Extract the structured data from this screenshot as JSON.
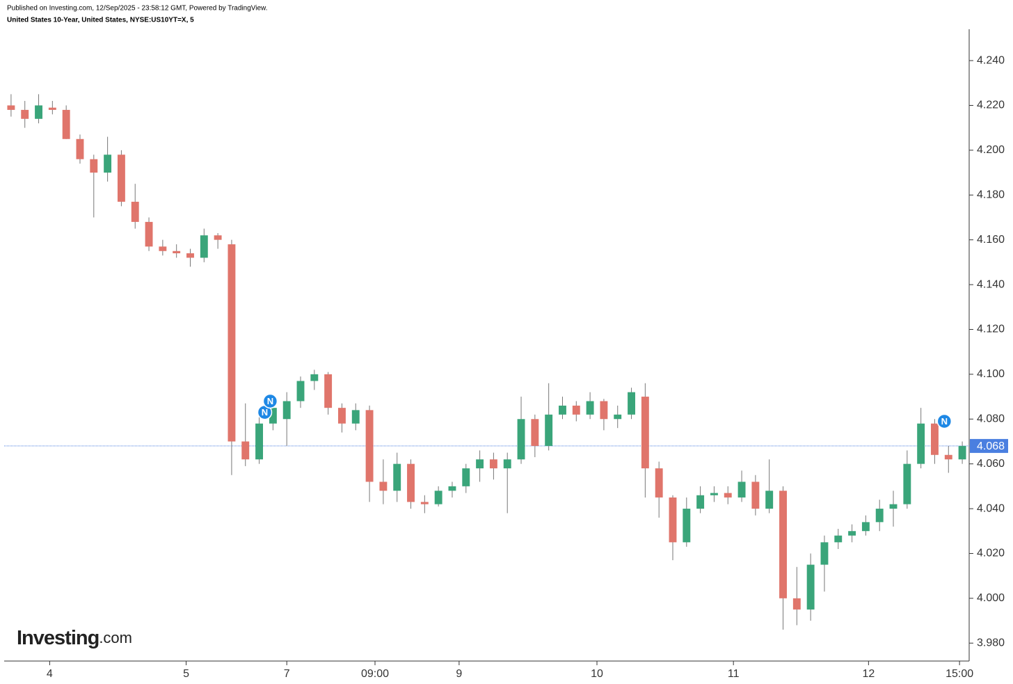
{
  "header": {
    "published": "Published on Investing.com, 12/Sep/2025 - 23:58:12 GMT, Powered by TradingView.",
    "symbol": "United States 10-Year, United States, NYSE:US10YT=X, 5"
  },
  "logo": {
    "brand": "Investing",
    "suffix": ".com"
  },
  "chart_data": {
    "type": "candlestick",
    "up_color": "#3aa57a",
    "down_color": "#e0756b",
    "last_color": "#4a7fe0",
    "xlim": [
      0,
      70
    ],
    "ylim": [
      3.972,
      4.254
    ],
    "xticks": [
      {
        "value": 3.3,
        "label": "4"
      },
      {
        "value": 13.2,
        "label": "5"
      },
      {
        "value": 20.5,
        "label": "7"
      },
      {
        "value": 26.9,
        "label": "09:00"
      },
      {
        "value": 33,
        "label": "9"
      },
      {
        "value": 43,
        "label": "10"
      },
      {
        "value": 52.9,
        "label": "11"
      },
      {
        "value": 62.7,
        "label": "12"
      },
      {
        "value": 69.3,
        "label": "15:00"
      }
    ],
    "yticks": [
      {
        "value": 3.98,
        "label": "3.980"
      },
      {
        "value": 4.0,
        "label": "4.000"
      },
      {
        "value": 4.02,
        "label": "4.020"
      },
      {
        "value": 4.04,
        "label": "4.040"
      },
      {
        "value": 4.06,
        "label": "4.060"
      },
      {
        "value": 4.08,
        "label": "4.080"
      },
      {
        "value": 4.1,
        "label": "4.100"
      },
      {
        "value": 4.12,
        "label": "4.120"
      },
      {
        "value": 4.14,
        "label": "4.140"
      },
      {
        "value": 4.16,
        "label": "4.160"
      },
      {
        "value": 4.18,
        "label": "4.180"
      },
      {
        "value": 4.2,
        "label": "4.200"
      },
      {
        "value": 4.22,
        "label": "4.220"
      },
      {
        "value": 4.24,
        "label": "4.240"
      }
    ],
    "last_value": 4.068,
    "x": [
      0.5,
      1.5,
      2.5,
      3.5,
      4.5,
      5.5,
      6.5,
      7.5,
      8.5,
      9.5,
      10.5,
      11.5,
      12.5,
      13.5,
      14.5,
      15.5,
      16.5,
      17.5,
      18.5,
      19.5,
      20.5,
      21.5,
      22.5,
      23.5,
      24.5,
      25.5,
      26.5,
      27.5,
      28.5,
      29.5,
      30.5,
      31.5,
      32.5,
      33.5,
      34.5,
      35.5,
      36.5,
      37.5,
      38.5,
      39.5,
      40.5,
      41.5,
      42.5,
      43.5,
      44.5,
      45.5,
      46.5,
      47.5,
      48.5,
      49.5,
      50.5,
      51.5,
      52.5,
      53.5,
      54.5,
      55.5,
      56.5,
      57.5,
      58.5,
      59.5,
      60.5,
      61.5,
      62.5,
      63.5,
      64.5,
      65.5,
      66.5,
      67.5,
      68.5,
      69.5
    ],
    "open": [
      4.22,
      4.218,
      4.214,
      4.219,
      4.218,
      4.205,
      4.196,
      4.19,
      4.198,
      4.177,
      4.168,
      4.157,
      4.155,
      4.154,
      4.152,
      4.162,
      4.158,
      4.07,
      4.062,
      4.078,
      4.08,
      4.088,
      4.097,
      4.1,
      4.085,
      4.078,
      4.084,
      4.052,
      4.048,
      4.06,
      4.043,
      4.042,
      4.048,
      4.05,
      4.058,
      4.062,
      4.058,
      4.062,
      4.08,
      4.068,
      4.082,
      4.086,
      4.082,
      4.088,
      4.08,
      4.082,
      4.09,
      4.058,
      4.045,
      4.025,
      4.04,
      4.046,
      4.047,
      4.045,
      4.052,
      4.04,
      4.048,
      4.0,
      3.995,
      4.015,
      4.025,
      4.028,
      4.03,
      4.034,
      4.04,
      4.042,
      4.06,
      4.078,
      4.064,
      4.062
    ],
    "high": [
      4.225,
      4.222,
      4.225,
      4.222,
      4.22,
      4.207,
      4.198,
      4.206,
      4.2,
      4.185,
      4.17,
      4.16,
      4.158,
      4.156,
      4.165,
      4.163,
      4.16,
      4.087,
      4.085,
      4.09,
      4.092,
      4.099,
      4.102,
      4.101,
      4.087,
      4.087,
      4.086,
      4.062,
      4.065,
      4.062,
      4.046,
      4.05,
      4.052,
      4.06,
      4.066,
      4.065,
      4.065,
      4.09,
      4.082,
      4.096,
      4.09,
      4.088,
      4.092,
      4.089,
      4.086,
      4.094,
      4.096,
      4.061,
      4.046,
      4.045,
      4.05,
      4.05,
      4.05,
      4.057,
      4.055,
      4.062,
      4.05,
      4.014,
      4.02,
      4.028,
      4.031,
      4.033,
      4.037,
      4.044,
      4.048,
      4.066,
      4.085,
      4.08,
      4.068,
      4.07
    ],
    "low": [
      4.215,
      4.21,
      4.212,
      4.216,
      4.205,
      4.194,
      4.17,
      4.186,
      4.175,
      4.165,
      4.155,
      4.153,
      4.152,
      4.148,
      4.15,
      4.156,
      4.055,
      4.059,
      4.06,
      4.075,
      4.068,
      4.085,
      4.093,
      4.082,
      4.074,
      4.075,
      4.043,
      4.042,
      4.043,
      4.04,
      4.038,
      4.041,
      4.045,
      4.047,
      4.052,
      4.053,
      4.038,
      4.06,
      4.063,
      4.066,
      4.08,
      4.079,
      4.08,
      4.075,
      4.076,
      4.08,
      4.045,
      4.036,
      4.017,
      4.023,
      4.038,
      4.043,
      4.042,
      4.043,
      4.037,
      4.038,
      3.986,
      3.988,
      3.99,
      4.003,
      4.022,
      4.025,
      4.028,
      4.03,
      4.032,
      4.04,
      4.058,
      4.06,
      4.056,
      4.06
    ],
    "close": [
      4.218,
      4.214,
      4.22,
      4.218,
      4.205,
      4.196,
      4.19,
      4.198,
      4.177,
      4.168,
      4.157,
      4.155,
      4.154,
      4.152,
      4.162,
      4.16,
      4.07,
      4.062,
      4.078,
      4.085,
      4.088,
      4.097,
      4.1,
      4.085,
      4.078,
      4.084,
      4.052,
      4.048,
      4.06,
      4.043,
      4.042,
      4.048,
      4.05,
      4.058,
      4.062,
      4.058,
      4.062,
      4.08,
      4.068,
      4.082,
      4.086,
      4.082,
      4.088,
      4.08,
      4.082,
      4.092,
      4.058,
      4.045,
      4.025,
      4.04,
      4.046,
      4.047,
      4.045,
      4.052,
      4.04,
      4.048,
      4.0,
      3.995,
      4.015,
      4.025,
      4.028,
      4.03,
      4.034,
      4.04,
      4.042,
      4.06,
      4.078,
      4.064,
      4.062,
      4.068
    ],
    "markers": [
      {
        "text": "N",
        "x": 18.9,
        "y": 4.083
      },
      {
        "text": "N",
        "x": 19.3,
        "y": 4.088
      },
      {
        "text": "N",
        "x": 68.2,
        "y": 4.079
      }
    ]
  }
}
